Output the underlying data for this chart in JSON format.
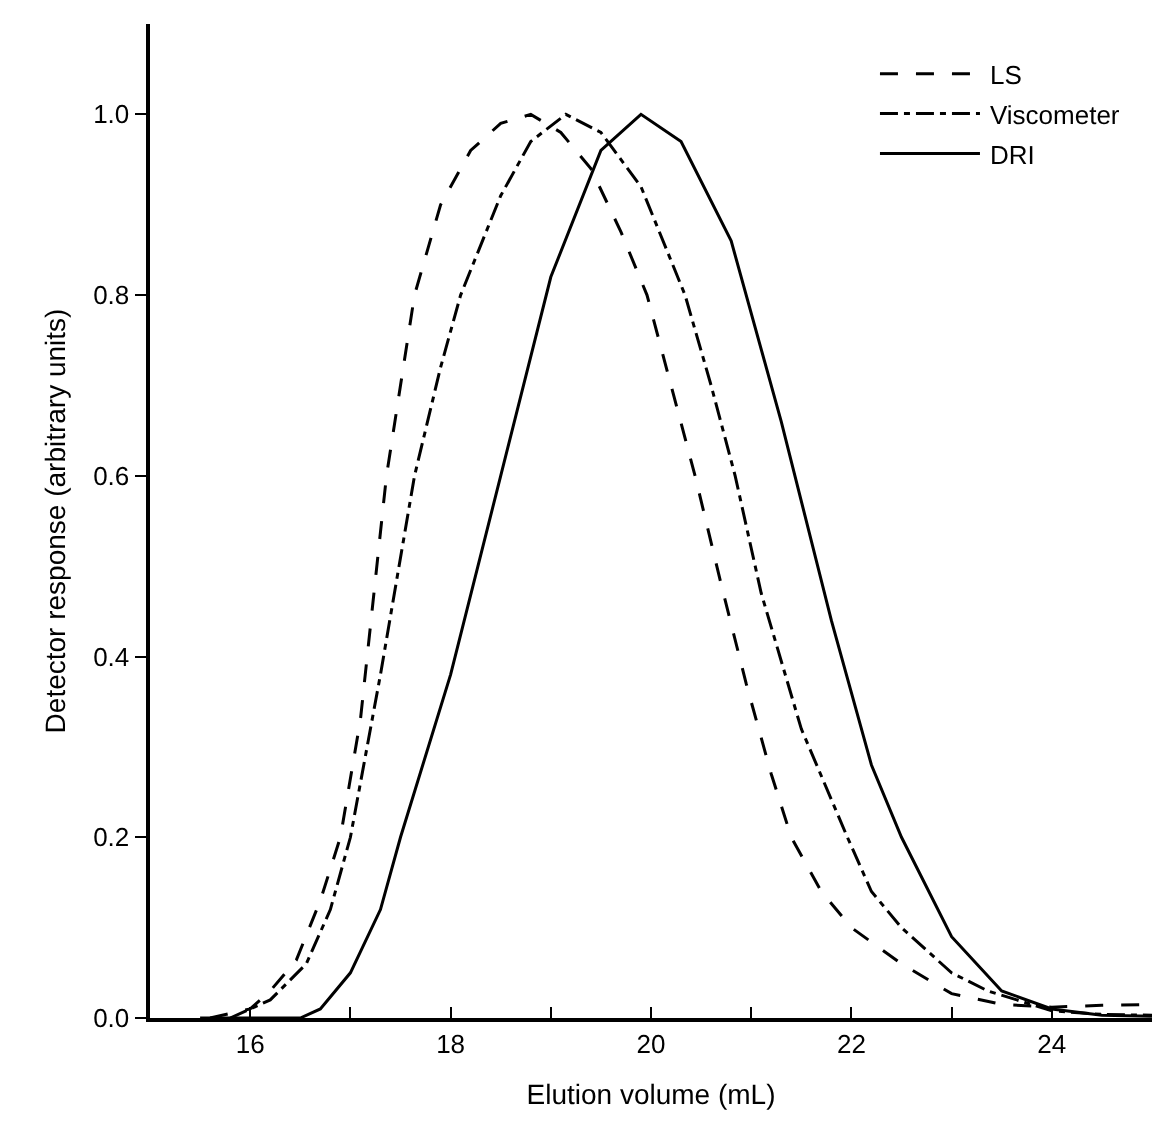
{
  "chart_data": {
    "type": "line",
    "xlabel": "Elution volume (mL)",
    "ylabel": "Detector response (arbitrary units)",
    "xlim": [
      15,
      25
    ],
    "ylim": [
      0,
      1.1
    ],
    "xticks": [
      {
        "value": 15,
        "label": null
      },
      16,
      {
        "value": 17,
        "label": null
      },
      18,
      {
        "value": 19,
        "label": null
      },
      20,
      {
        "value": 21,
        "label": null
      },
      22,
      {
        "value": 23,
        "label": null
      },
      24,
      {
        "value": 25,
        "label": null
      }
    ],
    "yticks": [
      "0.0",
      0.2,
      0.4,
      0.6,
      0.8,
      "1.0"
    ],
    "grid": false,
    "legend": "top right",
    "marker": "none",
    "series": [
      {
        "name": "LS",
        "color": "#000000",
        "line_style": "dashed",
        "x": [
          15.6,
          16.0,
          16.2,
          16.46,
          16.7,
          16.9,
          17.1,
          17.36,
          17.64,
          17.9,
          18.2,
          18.5,
          18.8,
          19.1,
          19.4,
          19.7,
          19.96,
          20.2,
          20.44,
          20.7,
          20.95,
          21.2,
          21.4,
          21.7,
          22.0,
          22.5,
          23.0,
          23.5,
          24.0,
          24.5,
          25.0
        ],
        "values": [
          0,
          0.01,
          0.03,
          0.064,
          0.13,
          0.2,
          0.33,
          0.6,
          0.8,
          0.9,
          0.96,
          0.99,
          1.0,
          0.98,
          0.94,
          0.87,
          0.8,
          0.7,
          0.6,
          0.48,
          0.37,
          0.27,
          0.2,
          0.14,
          0.1,
          0.06,
          0.027,
          0.015,
          0.012,
          0.014,
          0.015
        ]
      },
      {
        "name": "Viscometer",
        "color": "#000000",
        "line_style": "dashdot",
        "x": [
          15.8,
          16.2,
          16.56,
          16.8,
          17.0,
          17.3,
          17.64,
          17.9,
          18.1,
          18.5,
          18.8,
          19.15,
          19.5,
          19.9,
          20.34,
          20.6,
          20.84,
          21.1,
          21.5,
          21.96,
          22.2,
          22.5,
          23.0,
          23.36,
          24.0,
          24.5,
          25.0
        ],
        "values": [
          0,
          0.02,
          0.06,
          0.12,
          0.2,
          0.38,
          0.6,
          0.72,
          0.8,
          0.91,
          0.97,
          1.0,
          0.98,
          0.92,
          0.8,
          0.7,
          0.6,
          0.47,
          0.32,
          0.2,
          0.14,
          0.1,
          0.05,
          0.03,
          0.008,
          0.004,
          0.003
        ]
      },
      {
        "name": "DRI",
        "color": "#000000",
        "line_style": "solid",
        "x": [
          15.5,
          16.5,
          16.7,
          17.0,
          17.3,
          17.5,
          18.0,
          18.5,
          19.0,
          19.5,
          19.9,
          20.3,
          20.8,
          21.3,
          21.8,
          22.2,
          22.5,
          23.0,
          23.5,
          24.0,
          24.5,
          25.0
        ],
        "values": [
          0,
          0,
          0.01,
          0.05,
          0.12,
          0.2,
          0.38,
          0.6,
          0.82,
          0.96,
          1.0,
          0.97,
          0.86,
          0.66,
          0.44,
          0.28,
          0.2,
          0.09,
          0.03,
          0.01,
          0.003,
          0.002
        ]
      }
    ]
  }
}
